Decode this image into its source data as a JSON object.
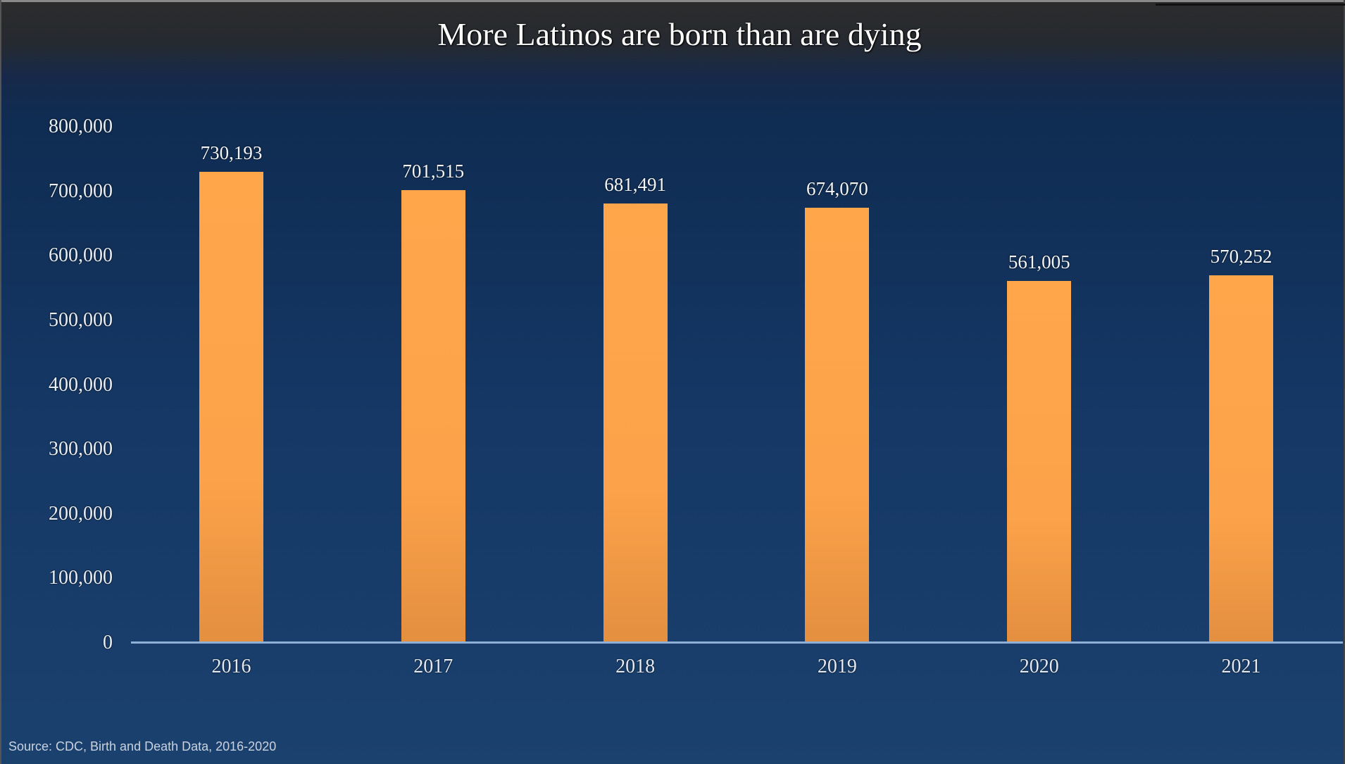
{
  "title": "More Latinos are born than are dying",
  "source": "Source: CDC, Birth and Death Data, 2016-2020",
  "colors": {
    "bar": "#fca24a",
    "background_top": "#2c2c2c",
    "background_bottom": "#1b416f",
    "axis": "#8fb0d6",
    "text": "#eef2f7"
  },
  "y_ticks": [
    "800,000",
    "700,000",
    "600,000",
    "500,000",
    "400,000",
    "300,000",
    "200,000",
    "100,000",
    "0"
  ],
  "bars": [
    {
      "year": "2016",
      "label": "730,193",
      "value": 730193
    },
    {
      "year": "2017",
      "label": "701,515",
      "value": 701515
    },
    {
      "year": "2018",
      "label": "681,491",
      "value": 681491
    },
    {
      "year": "2019",
      "label": "674,070",
      "value": 674070
    },
    {
      "year": "2020",
      "label": "561,005",
      "value": 561005
    },
    {
      "year": "2021",
      "label": "570,252",
      "value": 570252
    }
  ],
  "chart_data": {
    "type": "bar",
    "title": "More Latinos are born than are dying",
    "categories": [
      "2016",
      "2017",
      "2018",
      "2019",
      "2020",
      "2021"
    ],
    "values": [
      730193,
      701515,
      681491,
      674070,
      561005,
      570252
    ],
    "xlabel": "",
    "ylabel": "",
    "ylim": [
      0,
      800000
    ],
    "yticks": [
      0,
      100000,
      200000,
      300000,
      400000,
      500000,
      600000,
      700000,
      800000
    ],
    "grid": false,
    "legend": null,
    "data_labels": true,
    "annotations": [
      "Source: CDC, Birth and Death Data, 2016-2020"
    ]
  }
}
